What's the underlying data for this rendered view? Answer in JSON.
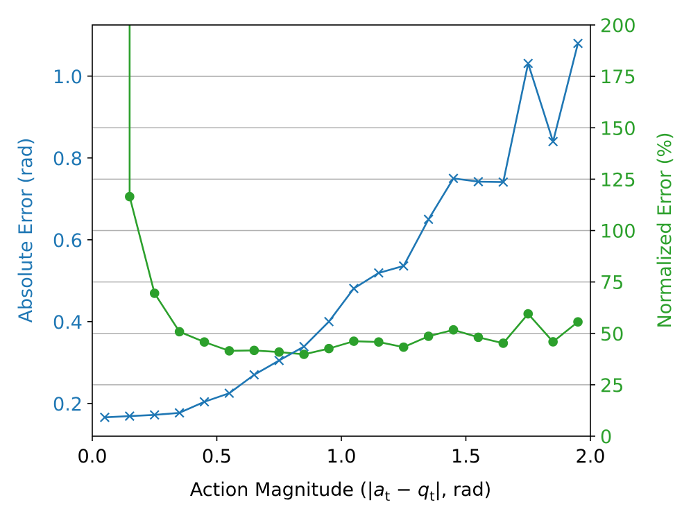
{
  "chart_data": {
    "type": "line",
    "xlabel_prefix": "Action Magnitude (|",
    "xlabel_a": "a",
    "xlabel_sub_a": "t",
    "xlabel_minus": " − ",
    "xlabel_q": "q",
    "xlabel_sub_q": "t",
    "xlabel_suffix": "|, rad)",
    "ylabel_left": "Absolute Error (rad)",
    "ylabel_right": "Normalized Error (%)",
    "xlim": [
      0.0,
      2.0
    ],
    "ylim_left": [
      0.12,
      1.125
    ],
    "ylim_right": [
      0,
      200
    ],
    "x_ticks": [
      0.0,
      0.5,
      1.0,
      1.5,
      2.0
    ],
    "x_tick_labels": [
      "0.0",
      "0.5",
      "1.0",
      "1.5",
      "2.0"
    ],
    "y_left_ticks": [
      0.2,
      0.4,
      0.6,
      0.8,
      1.0
    ],
    "y_left_tick_labels": [
      "0.2",
      "0.4",
      "0.6",
      "0.8",
      "1.0"
    ],
    "y_right_ticks": [
      0,
      25,
      50,
      75,
      100,
      125,
      150,
      175,
      200
    ],
    "y_right_tick_labels": [
      "0",
      "25",
      "50",
      "75",
      "100",
      "125",
      "150",
      "175",
      "200"
    ],
    "grid": "horizontal lines at right-axis ticks",
    "colors": {
      "absolute": "#1f77b4",
      "normalized": "#2ca02c",
      "grid": "#b0b0b0"
    },
    "series": [
      {
        "axis": "left",
        "marker": "x",
        "x": [
          0.05,
          0.15,
          0.25,
          0.35,
          0.45,
          0.55,
          0.65,
          0.75,
          0.85,
          0.95,
          1.05,
          1.15,
          1.25,
          1.35,
          1.45,
          1.55,
          1.65,
          1.75,
          1.85,
          1.95
        ],
        "y": [
          0.166,
          0.169,
          0.172,
          0.177,
          0.204,
          0.225,
          0.27,
          0.305,
          0.339,
          0.4,
          0.481,
          0.519,
          0.536,
          0.65,
          0.75,
          0.742,
          0.741,
          1.031,
          0.84,
          1.08
        ]
      },
      {
        "axis": "right",
        "marker": "o",
        "x": [
          0.15,
          0.25,
          0.35,
          0.45,
          0.55,
          0.65,
          0.75,
          0.85,
          0.95,
          1.05,
          1.15,
          1.25,
          1.35,
          1.45,
          1.55,
          1.65,
          1.75,
          1.85,
          1.95
        ],
        "y": [
          116.5,
          69.5,
          50.8,
          45.8,
          41.5,
          41.7,
          40.9,
          39.8,
          42.6,
          46.2,
          45.8,
          43.3,
          48.6,
          51.7,
          48.1,
          45.2,
          59.5,
          45.9,
          55.6
        ],
        "leading_segment_x": 0.15,
        "leading_segment_note": ""
      }
    ]
  }
}
